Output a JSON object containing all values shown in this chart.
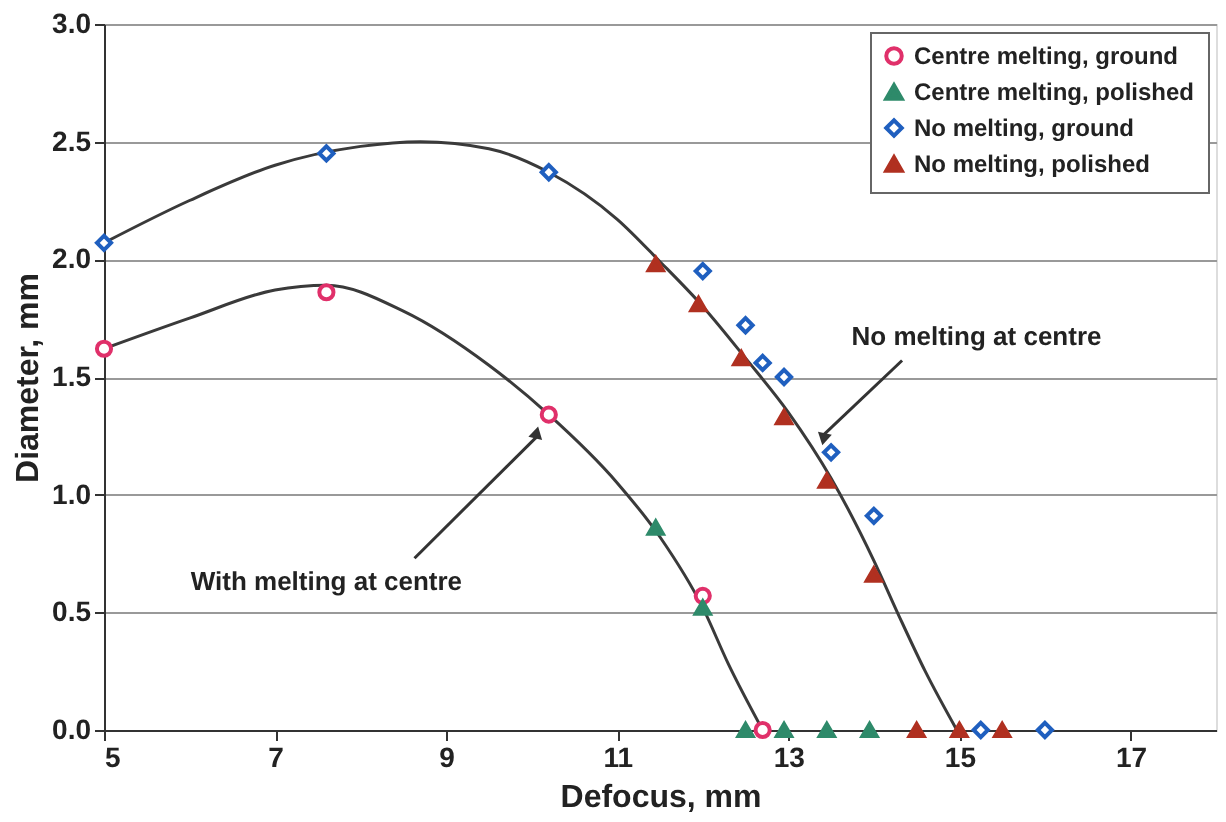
{
  "chart_data": {
    "type": "scatter",
    "xlabel": "Defocus, mm",
    "ylabel": "Diameter, mm",
    "xlim": [
      5,
      18
    ],
    "xticks": [
      5,
      7,
      9,
      11,
      13,
      15,
      17
    ],
    "ylim": [
      0,
      3
    ],
    "yticks": [
      {
        "value": 0,
        "label": "0.0"
      },
      0.5,
      {
        "value": 1,
        "label": "1.0"
      },
      1.5,
      {
        "value": 2,
        "label": "2.0"
      },
      2.5,
      {
        "value": 3,
        "label": "3.0"
      }
    ],
    "grid": "y",
    "legend": "top right",
    "series": [
      {
        "name": "Centre melting, ground",
        "color": "#e0306a",
        "marker": "circle",
        "x": [
          5,
          7.6,
          10.2,
          12,
          12.7
        ],
        "values": [
          1.62,
          1.86,
          1.34,
          0.57,
          0
        ]
      },
      {
        "name": "Centre melting, polished",
        "color": "#2e8a6a",
        "marker": "triangle",
        "x": [
          11.45,
          12,
          12.5,
          12.95,
          13.45,
          13.95
        ],
        "values": [
          0.86,
          0.52,
          0,
          0,
          0,
          0
        ]
      },
      {
        "name": "No melting, ground",
        "color": "#1f5fbf",
        "marker": "diamond",
        "x": [
          5,
          7.6,
          10.2,
          12,
          12.5,
          12.7,
          12.95,
          13.5,
          14,
          15.25,
          16
        ],
        "values": [
          2.07,
          2.45,
          2.37,
          1.95,
          1.72,
          1.56,
          1.5,
          1.18,
          0.91,
          0,
          0
        ]
      },
      {
        "name": "No melting, polished",
        "color": "#b03020",
        "marker": "triangle",
        "x": [
          11.45,
          11.95,
          12.45,
          12.95,
          13.45,
          14,
          14.5,
          15,
          15.5
        ],
        "values": [
          1.98,
          1.81,
          1.58,
          1.33,
          1.06,
          0.66,
          0,
          0,
          0
        ]
      },
      {
        "type": "line",
        "color": "#3a3a3a",
        "marker": "none",
        "x": [
          5,
          6,
          7,
          8,
          8.7,
          9.5,
          10.2,
          11,
          11.5,
          12,
          12.5,
          13,
          13.5,
          14,
          14.3,
          14.6,
          14.97
        ],
        "values": [
          2.07,
          2.25,
          2.4,
          2.48,
          2.5,
          2.47,
          2.37,
          2.17,
          1.99,
          1.8,
          1.58,
          1.35,
          1.07,
          0.72,
          0.48,
          0.25,
          0
        ]
      },
      {
        "type": "line",
        "color": "#3a3a3a",
        "marker": "none",
        "x": [
          5,
          6,
          7,
          7.6,
          8.5,
          9.5,
          10.2,
          11,
          11.5,
          12,
          12.3,
          12.7
        ],
        "values": [
          1.62,
          1.75,
          1.87,
          1.89,
          1.78,
          1.55,
          1.34,
          1.05,
          0.82,
          0.52,
          0.28,
          0
        ]
      }
    ],
    "annotations": [
      {
        "text": "With melting at centre",
        "x": 10.07,
        "y": 1.25
      },
      {
        "text": "No melting at centre",
        "x": 13.4,
        "y": 1.25
      }
    ]
  }
}
